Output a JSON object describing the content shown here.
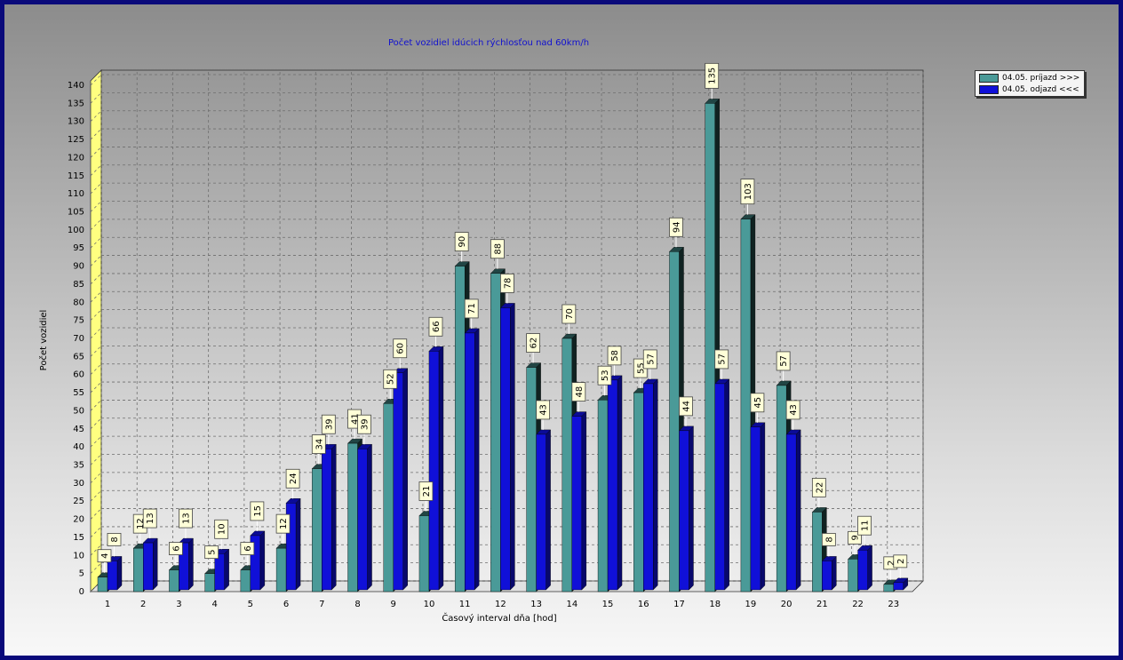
{
  "chart_data": {
    "type": "bar",
    "title": "Počet vozidiel idúcich rýchlosťou nad 60km/h",
    "xlabel": "Časový interval dňa [hod]",
    "ylabel": "Počet vozidiel",
    "ylim": [
      0,
      140
    ],
    "ytick_step": 5,
    "grid": true,
    "legend_position": "top-right",
    "categories": [
      "1",
      "2",
      "3",
      "4",
      "5",
      "6",
      "7",
      "8",
      "9",
      "10",
      "11",
      "12",
      "13",
      "14",
      "15",
      "16",
      "17",
      "18",
      "19",
      "20",
      "21",
      "22",
      "23"
    ],
    "series": [
      {
        "name": "04.05. príjazd >>>",
        "color": "#4a9a98",
        "values": [
          4,
          12,
          6,
          5,
          6,
          12,
          34,
          41,
          52,
          21,
          90,
          88,
          62,
          70,
          53,
          55,
          94,
          135,
          103,
          57,
          22,
          9,
          2
        ]
      },
      {
        "name": "04.05. odjazd <<<",
        "color": "#1010d8",
        "values": [
          8,
          13,
          13,
          10,
          15,
          24,
          39,
          39,
          60,
          66,
          71,
          78,
          43,
          48,
          58,
          57,
          44,
          57,
          45,
          43,
          8,
          11,
          2
        ]
      }
    ]
  }
}
